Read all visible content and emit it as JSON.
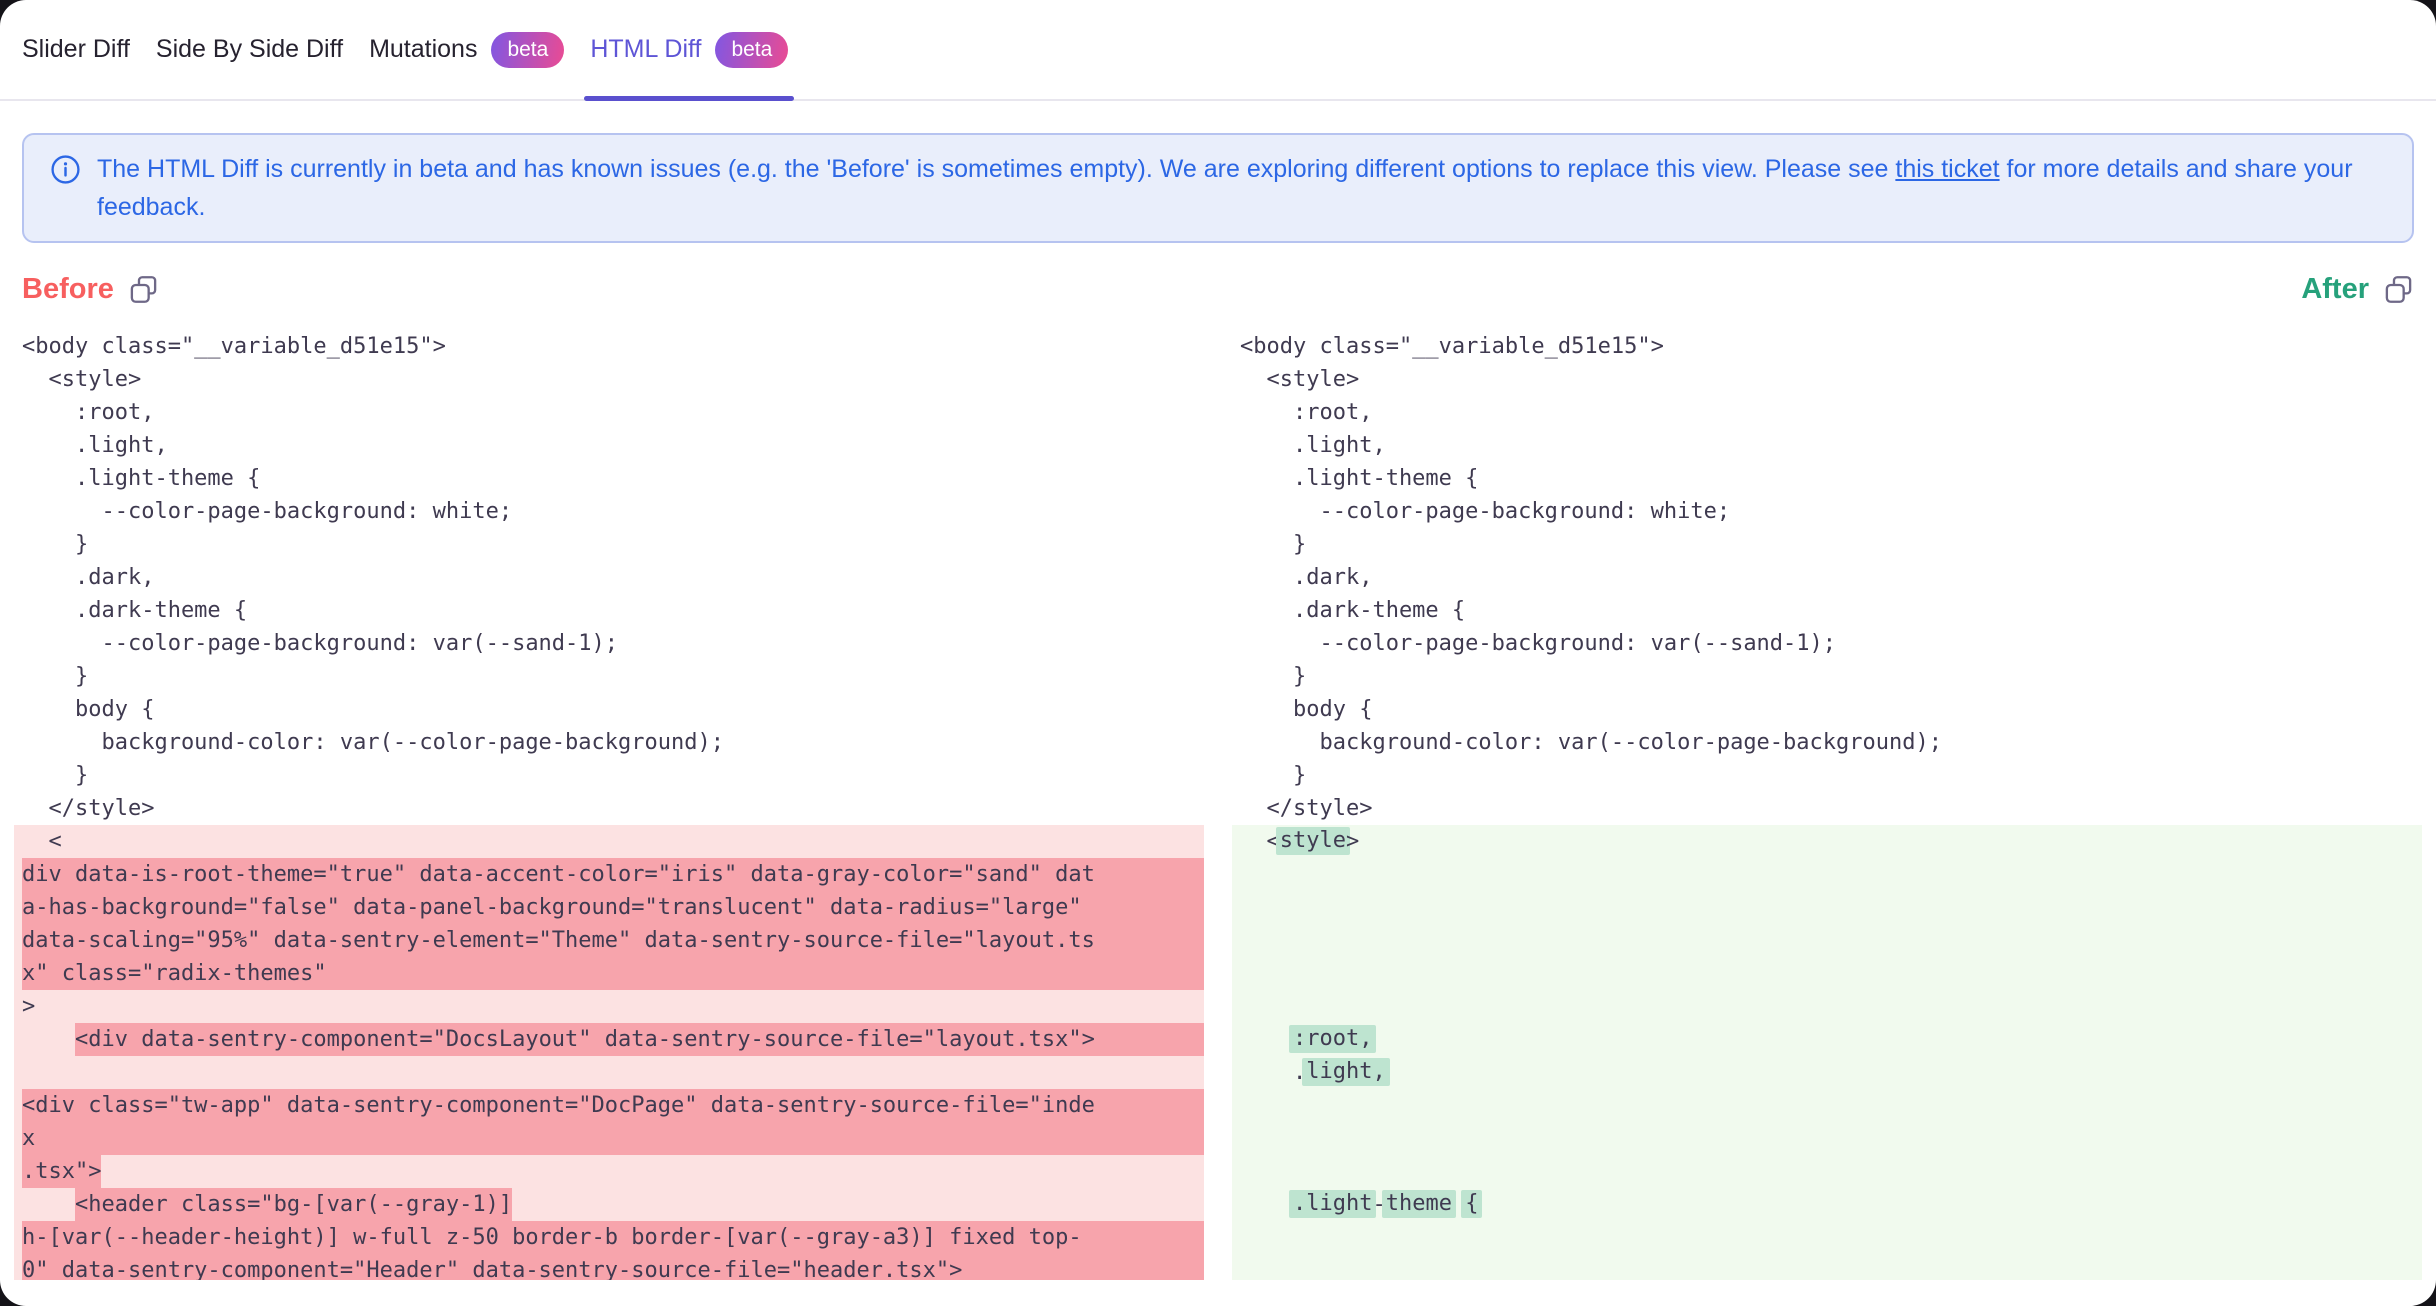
{
  "tabs": [
    {
      "label": "Slider Diff",
      "badge": null,
      "active": false
    },
    {
      "label": "Side By Side Diff",
      "badge": null,
      "active": false
    },
    {
      "label": "Mutations",
      "badge": "beta",
      "active": false
    },
    {
      "label": "HTML Diff",
      "badge": "beta",
      "active": true
    }
  ],
  "banner": {
    "text_before": "The HTML Diff is currently in beta and has known issues (e.g. the 'Before' is sometimes empty). We are exploring different options to replace this view. Please see ",
    "link": "this ticket",
    "text_after": " for more details and share your feedback."
  },
  "diff": {
    "before_label": "Before",
    "after_label": "After"
  },
  "before": {
    "rows": [
      {
        "b": "p",
        "f": false,
        "s": [
          [
            "t",
            "<body class=\"__variable_d51e15\">"
          ]
        ]
      },
      {
        "b": "p",
        "f": false,
        "s": [
          [
            "t",
            "  <style>"
          ]
        ]
      },
      {
        "b": "p",
        "f": false,
        "s": [
          [
            "t",
            "    :root,"
          ]
        ]
      },
      {
        "b": "p",
        "f": false,
        "s": [
          [
            "t",
            "    .light,"
          ]
        ]
      },
      {
        "b": "p",
        "f": false,
        "s": [
          [
            "t",
            "    .light-theme {"
          ]
        ]
      },
      {
        "b": "p",
        "f": false,
        "s": [
          [
            "t",
            "      --color-page-background: white;"
          ]
        ]
      },
      {
        "b": "p",
        "f": false,
        "s": [
          [
            "t",
            "    }"
          ]
        ]
      },
      {
        "b": "p",
        "f": false,
        "s": [
          [
            "t",
            "    .dark,"
          ]
        ]
      },
      {
        "b": "p",
        "f": false,
        "s": [
          [
            "t",
            "    .dark-theme {"
          ]
        ]
      },
      {
        "b": "p",
        "f": false,
        "s": [
          [
            "t",
            "      --color-page-background: var(--sand-1);"
          ]
        ]
      },
      {
        "b": "p",
        "f": false,
        "s": [
          [
            "t",
            "    }"
          ]
        ]
      },
      {
        "b": "p",
        "f": false,
        "s": [
          [
            "t",
            "    body {"
          ]
        ]
      },
      {
        "b": "p",
        "f": false,
        "s": [
          [
            "t",
            "      background-color: var(--color-page-background);"
          ]
        ]
      },
      {
        "b": "p",
        "f": false,
        "s": [
          [
            "t",
            "    }"
          ]
        ]
      },
      {
        "b": "p",
        "f": false,
        "s": [
          [
            "t",
            "  </style>"
          ]
        ]
      },
      {
        "b": "c",
        "f": false,
        "s": [
          [
            "t",
            "  <"
          ]
        ]
      },
      {
        "b": "c",
        "f": true,
        "s": [
          [
            "d",
            "div data-is-root-theme=\"true\" data-accent-color=\"iris\" data-gray-color=\"sand\" dat"
          ]
        ]
      },
      {
        "b": "c",
        "f": true,
        "s": [
          [
            "d",
            "a-has-background=\"false\" data-panel-background=\"translucent\" data-radius=\"large\""
          ]
        ]
      },
      {
        "b": "c",
        "f": true,
        "s": [
          [
            "d",
            "data-scaling=\"95%\" data-sentry-element=\"Theme\" data-sentry-source-file=\"layout.ts"
          ]
        ]
      },
      {
        "b": "c",
        "f": true,
        "s": [
          [
            "d",
            "x\" class=\"radix-themes\""
          ]
        ]
      },
      {
        "b": "c",
        "f": false,
        "s": [
          [
            "t",
            ">"
          ]
        ]
      },
      {
        "b": "c",
        "f": true,
        "s": [
          [
            "t",
            "    "
          ],
          [
            "d",
            "<div data-sentry-component=\"DocsLayout\" data-sentry-source-file=\"layout.tsx\">"
          ]
        ]
      },
      {
        "b": "c",
        "f": false,
        "s": []
      },
      {
        "b": "c",
        "f": true,
        "s": [
          [
            "d",
            "<div class=\"tw-app\" data-sentry-component=\"DocPage\" data-sentry-source-file=\"inde"
          ]
        ]
      },
      {
        "b": "c",
        "f": true,
        "s": [
          [
            "d",
            "x"
          ]
        ]
      },
      {
        "b": "c",
        "f": false,
        "s": [
          [
            "d",
            ".tsx\">"
          ]
        ]
      },
      {
        "b": "c",
        "f": false,
        "s": [
          [
            "t",
            "    "
          ],
          [
            "d",
            "<header class=\"bg-"
          ],
          [
            "d",
            "[var(--gray-1)]"
          ]
        ]
      },
      {
        "b": "c",
        "f": true,
        "s": [
          [
            "d",
            "h-[var(--header-height)] w-full z-50 border-b border-[var(--gray-a3)] fixed top-"
          ]
        ]
      },
      {
        "b": "c",
        "f": true,
        "s": [
          [
            "d",
            "0\" data-sentry-component=\"Header\" data-sentry-source-file=\"header.tsx\">"
          ]
        ]
      }
    ]
  },
  "after": {
    "rows": [
      {
        "b": "p",
        "f": false,
        "s": [
          [
            "t",
            "<body class=\"__variable_d51e15\">"
          ]
        ]
      },
      {
        "b": "p",
        "f": false,
        "s": [
          [
            "t",
            "  <style>"
          ]
        ]
      },
      {
        "b": "p",
        "f": false,
        "s": [
          [
            "t",
            "    :root,"
          ]
        ]
      },
      {
        "b": "p",
        "f": false,
        "s": [
          [
            "t",
            "    .light,"
          ]
        ]
      },
      {
        "b": "p",
        "f": false,
        "s": [
          [
            "t",
            "    .light-theme {"
          ]
        ]
      },
      {
        "b": "p",
        "f": false,
        "s": [
          [
            "t",
            "      --color-page-background: white;"
          ]
        ]
      },
      {
        "b": "p",
        "f": false,
        "s": [
          [
            "t",
            "    }"
          ]
        ]
      },
      {
        "b": "p",
        "f": false,
        "s": [
          [
            "t",
            "    .dark,"
          ]
        ]
      },
      {
        "b": "p",
        "f": false,
        "s": [
          [
            "t",
            "    .dark-theme {"
          ]
        ]
      },
      {
        "b": "p",
        "f": false,
        "s": [
          [
            "t",
            "      --color-page-background: var(--sand-1);"
          ]
        ]
      },
      {
        "b": "p",
        "f": false,
        "s": [
          [
            "t",
            "    }"
          ]
        ]
      },
      {
        "b": "p",
        "f": false,
        "s": [
          [
            "t",
            "    body {"
          ]
        ]
      },
      {
        "b": "p",
        "f": false,
        "s": [
          [
            "t",
            "      background-color: var(--color-page-background);"
          ]
        ]
      },
      {
        "b": "p",
        "f": false,
        "s": [
          [
            "t",
            "    }"
          ]
        ]
      },
      {
        "b": "p",
        "f": false,
        "s": [
          [
            "t",
            "  </style>"
          ]
        ]
      },
      {
        "b": "c",
        "f": false,
        "s": [
          [
            "t",
            "  <"
          ],
          [
            "w",
            "style"
          ],
          [
            "t",
            ">"
          ]
        ]
      },
      {
        "b": "c",
        "f": false,
        "s": []
      },
      {
        "b": "c",
        "f": false,
        "s": []
      },
      {
        "b": "c",
        "f": false,
        "s": []
      },
      {
        "b": "c",
        "f": false,
        "s": []
      },
      {
        "b": "c",
        "f": false,
        "s": []
      },
      {
        "b": "c",
        "f": false,
        "s": [
          [
            "t",
            "    "
          ],
          [
            "w",
            ":root,"
          ]
        ]
      },
      {
        "b": "c",
        "f": false,
        "s": [
          [
            "t",
            "    ."
          ],
          [
            "w",
            "light,"
          ]
        ]
      },
      {
        "b": "c",
        "f": false,
        "s": []
      },
      {
        "b": "c",
        "f": false,
        "s": []
      },
      {
        "b": "c",
        "f": false,
        "s": []
      },
      {
        "b": "c",
        "f": false,
        "s": [
          [
            "t",
            "    "
          ],
          [
            "w",
            ".light"
          ],
          [
            "t",
            "-"
          ],
          [
            "w",
            "theme"
          ],
          [
            "t",
            " "
          ],
          [
            "w",
            "{"
          ]
        ]
      },
      {
        "b": "c",
        "f": false,
        "s": []
      },
      {
        "b": "c",
        "f": false,
        "s": []
      }
    ]
  }
}
